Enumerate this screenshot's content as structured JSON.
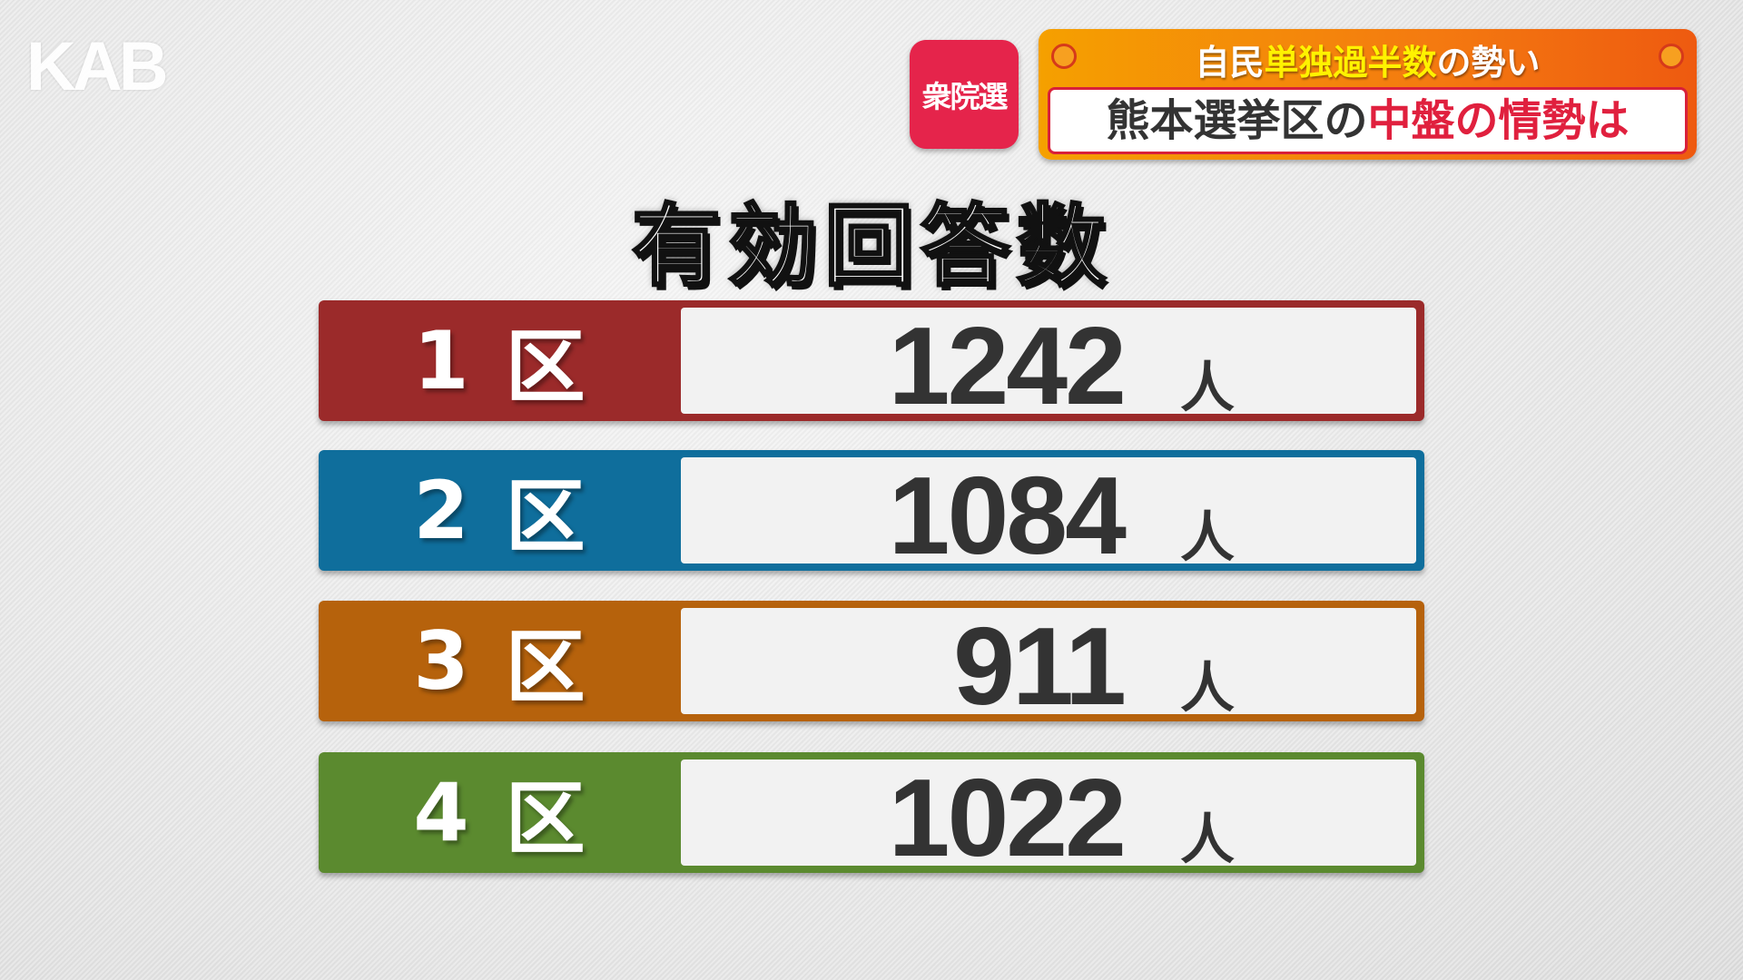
{
  "logo": "KAB",
  "badge": "衆院選",
  "banner": {
    "top_white_1": "自民",
    "top_yellow": "単独過半数",
    "top_white_2": "の勢い",
    "main_dark": "熊本選挙区の",
    "main_red": "中盤の情勢は"
  },
  "title": "有効回答数",
  "rows": [
    {
      "num": "1",
      "ku": "区",
      "value": "1242",
      "unit": "人",
      "color": "#9b2a2a"
    },
    {
      "num": "2",
      "ku": "区",
      "value": "1084",
      "unit": "人",
      "color": "#0f6e9c"
    },
    {
      "num": "3",
      "ku": "区",
      "value": "911",
      "unit": "人",
      "color": "#b6620c"
    },
    {
      "num": "4",
      "ku": "区",
      "value": "1022",
      "unit": "人",
      "color": "#5b8a2f"
    }
  ]
}
